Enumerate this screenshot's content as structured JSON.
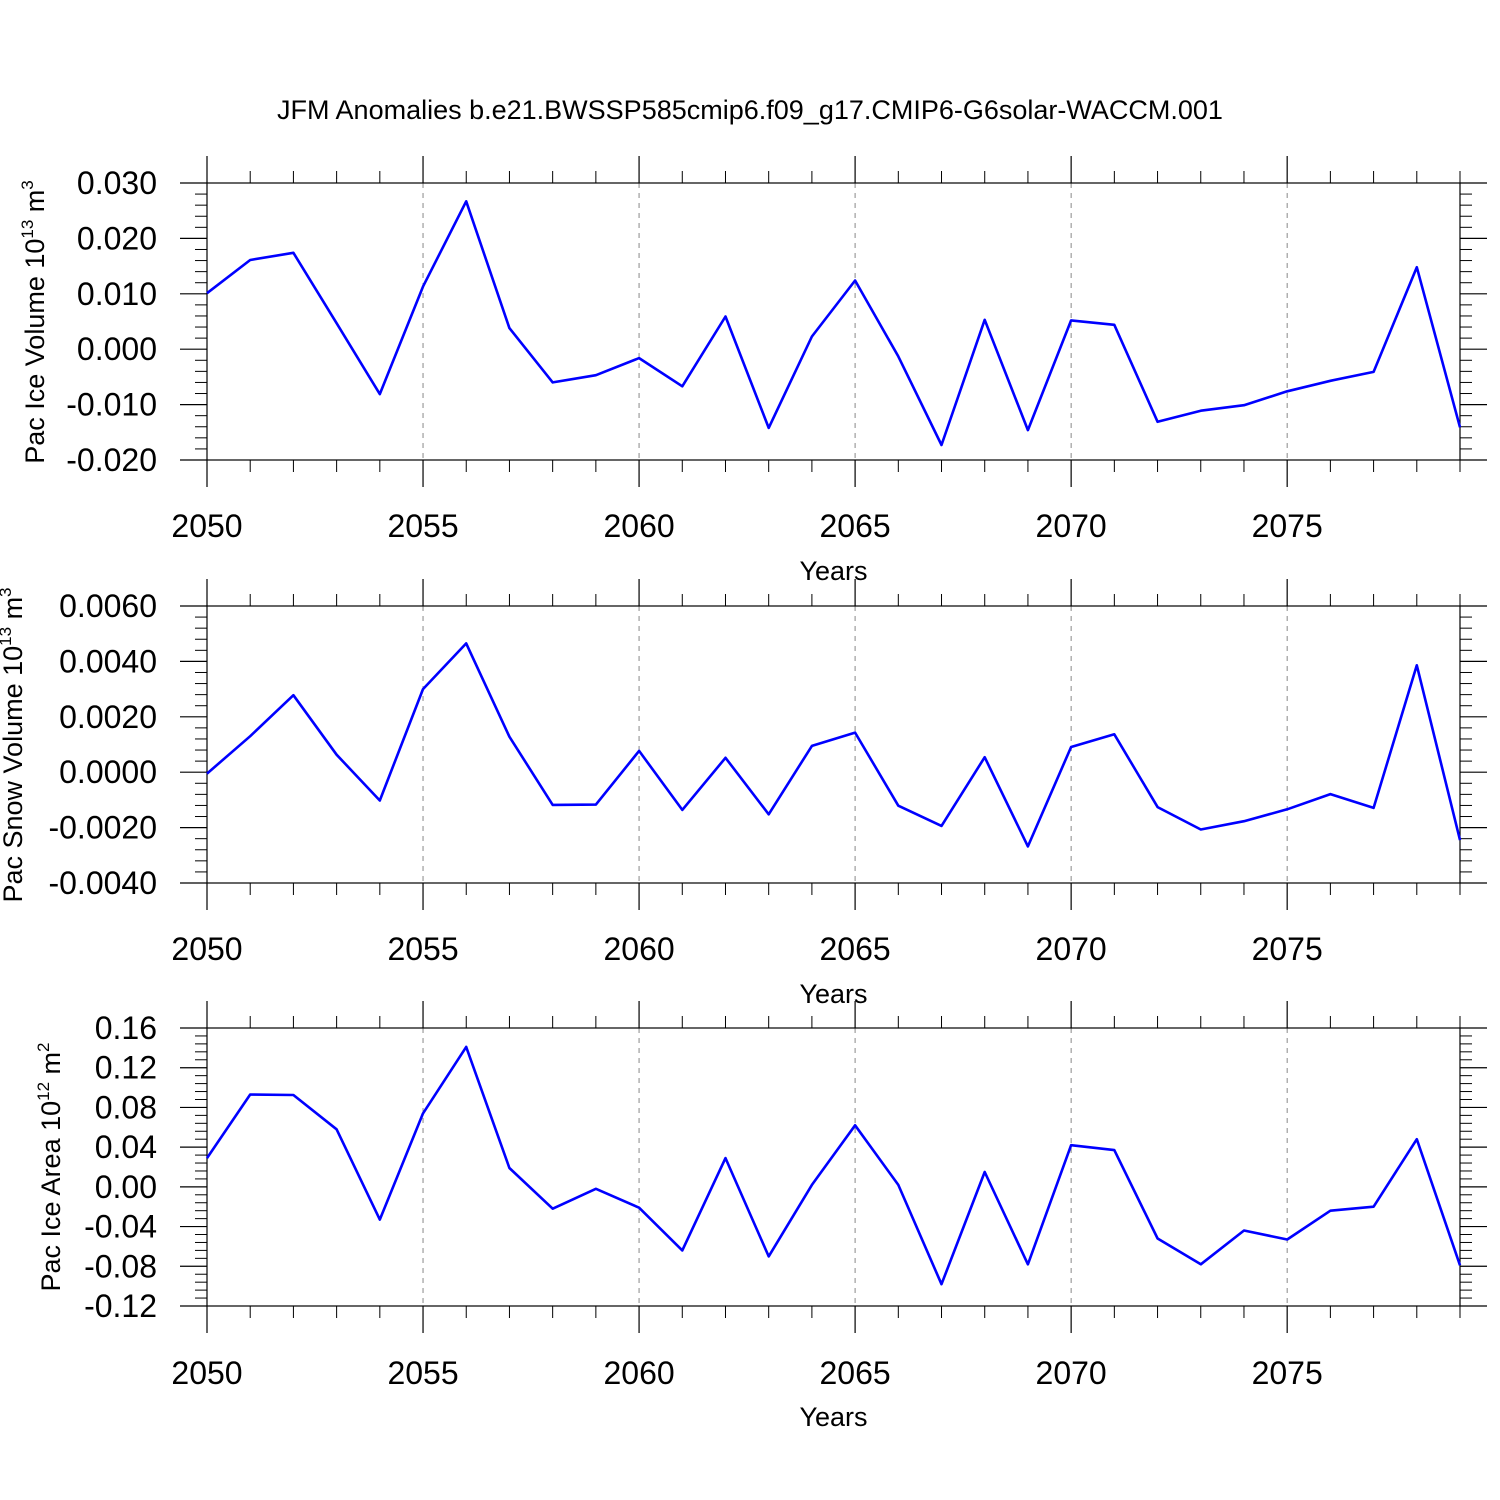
{
  "title": "JFM Anomalies b.e21.BWSSP585cmip6.f09_g17.CMIP6-G6solar-WACCM.001",
  "chart_data": [
    {
      "type": "line",
      "ylabel": "Pac Ice Volume 10",
      "ylabel_exp": "13",
      "ylabel_unit": "m",
      "ylabel_unit_exp": "3",
      "xlabel": "Years",
      "xlim": [
        2050,
        2079
      ],
      "ylim": [
        -0.02,
        0.03
      ],
      "x_ticks": [
        2050,
        2055,
        2060,
        2065,
        2070,
        2075
      ],
      "x_tick_labels": [
        "2050",
        "2055",
        "2060",
        "2065",
        "2070",
        "2075"
      ],
      "y_ticks": [
        -0.02,
        -0.01,
        0.0,
        0.01,
        0.02,
        0.03
      ],
      "y_tick_labels": [
        "-0.020",
        "-0.010",
        "0.000",
        "0.010",
        "0.020",
        "0.030"
      ],
      "vertical_dashed_grid_at": [
        2055,
        2060,
        2065,
        2070,
        2075
      ],
      "line_color": "#0000ff",
      "x": [
        2050,
        2051,
        2052,
        2053,
        2054,
        2055,
        2056,
        2057,
        2058,
        2059,
        2060,
        2061,
        2062,
        2063,
        2064,
        2065,
        2066,
        2067,
        2068,
        2069,
        2070,
        2071,
        2072,
        2073,
        2074,
        2075,
        2076,
        2077,
        2078,
        2079
      ],
      "values": [
        0.0101,
        0.0161,
        0.0174,
        0.0047,
        -0.0081,
        0.0113,
        0.0267,
        0.0038,
        -0.006,
        -0.0047,
        -0.0016,
        -0.0067,
        0.0059,
        -0.0142,
        0.0023,
        0.0124,
        -0.0013,
        -0.0173,
        0.0053,
        -0.0146,
        0.0052,
        0.0044,
        -0.0131,
        -0.0111,
        -0.0101,
        -0.0076,
        -0.0057,
        -0.0041,
        0.0148,
        -0.0141
      ]
    },
    {
      "type": "line",
      "ylabel": "Pac Snow Volume 10",
      "ylabel_exp": "13",
      "ylabel_unit": "m",
      "ylabel_unit_exp": "3",
      "xlabel": "Years",
      "xlim": [
        2050,
        2079
      ],
      "ylim": [
        -0.004,
        0.006
      ],
      "x_ticks": [
        2050,
        2055,
        2060,
        2065,
        2070,
        2075
      ],
      "x_tick_labels": [
        "2050",
        "2055",
        "2060",
        "2065",
        "2070",
        "2075"
      ],
      "y_ticks": [
        -0.004,
        -0.002,
        0.0,
        0.002,
        0.004,
        0.006
      ],
      "y_tick_labels": [
        "-0.0040",
        "-0.0020",
        "0.0000",
        "0.0020",
        "0.0040",
        "0.0060"
      ],
      "vertical_dashed_grid_at": [
        2055,
        2060,
        2065,
        2070,
        2075
      ],
      "line_color": "#0000ff",
      "x": [
        2050,
        2051,
        2052,
        2053,
        2054,
        2055,
        2056,
        2057,
        2058,
        2059,
        2060,
        2061,
        2062,
        2063,
        2064,
        2065,
        2066,
        2067,
        2068,
        2069,
        2070,
        2071,
        2072,
        2073,
        2074,
        2075,
        2076,
        2077,
        2078,
        2079
      ],
      "values": [
        -5e-05,
        0.0013,
        0.00278,
        0.00063,
        -0.00102,
        0.003,
        0.00465,
        0.00128,
        -0.00118,
        -0.00117,
        0.00077,
        -0.00136,
        0.00052,
        -0.00152,
        0.00095,
        0.00143,
        -0.00121,
        -0.00194,
        0.00054,
        -0.00268,
        0.00091,
        0.00137,
        -0.00126,
        -0.00207,
        -0.00177,
        -0.00134,
        -0.00079,
        -0.00129,
        0.00386,
        -0.00245
      ]
    },
    {
      "type": "line",
      "ylabel": "Pac Ice Area 10",
      "ylabel_exp": "12",
      "ylabel_unit": "m",
      "ylabel_unit_exp": "2",
      "xlabel": "Years",
      "xlim": [
        2050,
        2079
      ],
      "ylim": [
        -0.12,
        0.16
      ],
      "x_ticks": [
        2050,
        2055,
        2060,
        2065,
        2070,
        2075
      ],
      "x_tick_labels": [
        "2050",
        "2055",
        "2060",
        "2065",
        "2070",
        "2075"
      ],
      "y_ticks": [
        -0.12,
        -0.08,
        -0.04,
        0.0,
        0.04,
        0.08,
        0.12,
        0.16
      ],
      "y_tick_labels": [
        "-0.12",
        "-0.08",
        "-0.04",
        "0.00",
        "0.04",
        "0.08",
        "0.12",
        "0.16"
      ],
      "vertical_dashed_grid_at": [
        2055,
        2060,
        2065,
        2070,
        2075
      ],
      "line_color": "#0000ff",
      "x": [
        2050,
        2051,
        2052,
        2053,
        2054,
        2055,
        2056,
        2057,
        2058,
        2059,
        2060,
        2061,
        2062,
        2063,
        2064,
        2065,
        2066,
        2067,
        2068,
        2069,
        2070,
        2071,
        2072,
        2073,
        2074,
        2075,
        2076,
        2077,
        2078,
        2079
      ],
      "values": [
        0.029,
        0.093,
        0.0925,
        0.058,
        -0.033,
        0.074,
        0.141,
        0.019,
        -0.022,
        -0.002,
        -0.021,
        -0.064,
        0.029,
        -0.07,
        0.002,
        0.062,
        0.002,
        -0.098,
        0.015,
        -0.078,
        0.042,
        0.037,
        -0.052,
        -0.078,
        -0.044,
        -0.053,
        -0.024,
        -0.02,
        0.048,
        -0.079
      ]
    }
  ]
}
